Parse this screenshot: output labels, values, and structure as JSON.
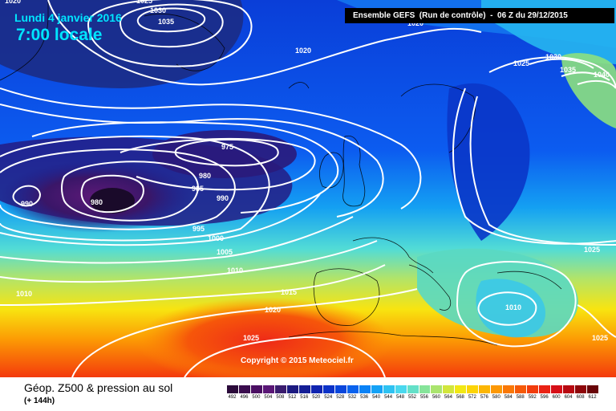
{
  "header": {
    "date": "Lundi 4 janvier 2016",
    "time": "7:00 locale",
    "run": "Ensemble GEFS  (Run de contrôle)  -  06 Z du 29/12/2015"
  },
  "copyright": "Copyright © 2015 Meteociel.fr",
  "footer": {
    "title": "Géop. Z500 & pression au sol",
    "subtitle": "(+ 144h)"
  },
  "legend": {
    "values": [
      "492",
      "496",
      "500",
      "504",
      "508",
      "512",
      "516",
      "520",
      "524",
      "528",
      "532",
      "536",
      "540",
      "544",
      "548",
      "552",
      "556",
      "560",
      "564",
      "568",
      "572",
      "576",
      "580",
      "584",
      "588",
      "592",
      "596",
      "600",
      "604",
      "608",
      "612"
    ],
    "colors": [
      "#2b0a3a",
      "#3a0c4e",
      "#4a0e62",
      "#5a1676",
      "#3a1c6e",
      "#1c1a80",
      "#141e96",
      "#1024b0",
      "#0c32c8",
      "#0a46dc",
      "#0a62ee",
      "#0a82f6",
      "#14a2f6",
      "#2ec2f2",
      "#4ad8ee",
      "#64e0c8",
      "#86e49a",
      "#aae46e",
      "#d2e63c",
      "#f2e814",
      "#fcd406",
      "#fcb604",
      "#fc9804",
      "#fa7806",
      "#f65a08",
      "#f23c0c",
      "#ea2214",
      "#d60e16",
      "#b80810",
      "#8e060a",
      "#680408"
    ]
  },
  "isobar_labels": [
    {
      "id": "1020-top-left",
      "text": "1020"
    },
    {
      "id": "1025-top",
      "text": "1025"
    },
    {
      "id": "1030-top",
      "text": "1030"
    },
    {
      "id": "1035-top",
      "text": "1035"
    },
    {
      "id": "1020-mid",
      "text": "1020"
    },
    {
      "id": "1020-partial-top",
      "text": "1020"
    },
    {
      "id": "1025-ne",
      "text": "1025"
    },
    {
      "id": "1030-ne",
      "text": "1030"
    },
    {
      "id": "1035-ne",
      "text": "1035"
    },
    {
      "id": "1040-ne",
      "text": "1040"
    },
    {
      "id": "975",
      "text": "975"
    },
    {
      "id": "980-a",
      "text": "980"
    },
    {
      "id": "980-b",
      "text": "980"
    },
    {
      "id": "985",
      "text": "985"
    },
    {
      "id": "990-a",
      "text": "990"
    },
    {
      "id": "990-b",
      "text": "990"
    },
    {
      "id": "995",
      "text": "995"
    },
    {
      "id": "1000",
      "text": "1000"
    },
    {
      "id": "1005",
      "text": "1005"
    },
    {
      "id": "1010-a",
      "text": "1010"
    },
    {
      "id": "1010-b",
      "text": "1010"
    },
    {
      "id": "1015",
      "text": "1015"
    },
    {
      "id": "1020-south",
      "text": "1020"
    },
    {
      "id": "1025-south",
      "text": "1025"
    },
    {
      "id": "1025-east",
      "text": "1025"
    },
    {
      "id": "1010-east",
      "text": "1010"
    },
    {
      "id": "1025-se",
      "text": "1025"
    }
  ]
}
